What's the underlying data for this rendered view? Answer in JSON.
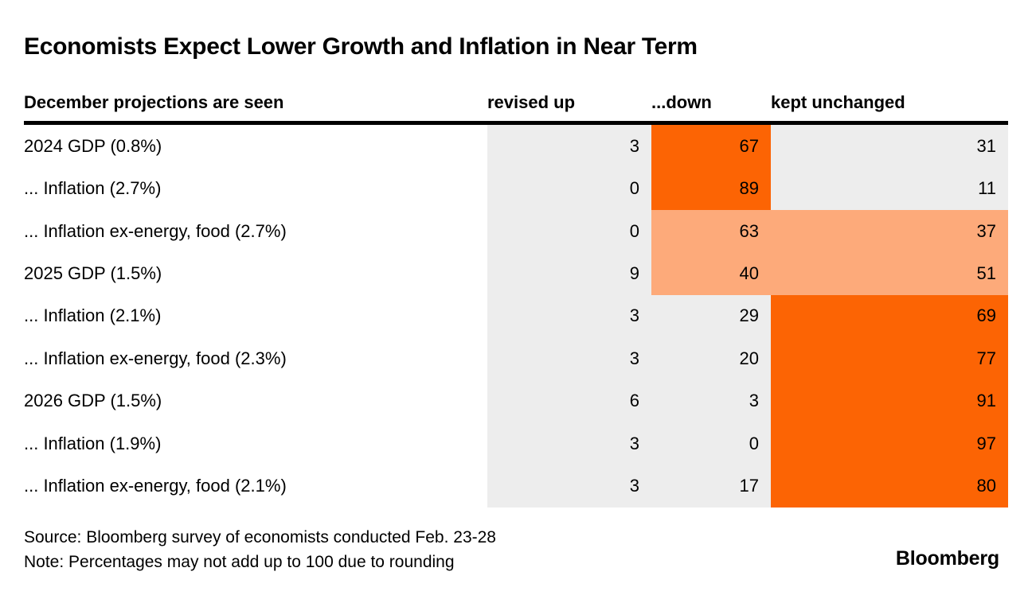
{
  "title": "Economists Expect Lower Growth and Inflation in Near Term",
  "colors": {
    "highlight_strong": "#FC6404",
    "highlight_soft": "#FDAA7A",
    "cell_gray": "#EDEDED",
    "text": "#000000"
  },
  "table": {
    "header": {
      "label": "December projections are seen",
      "columns": [
        "revised up",
        "...down",
        "kept unchanged"
      ]
    },
    "rows": [
      {
        "label": "2024 GDP (0.8%)",
        "up": "3",
        "down": "67",
        "kept": "31",
        "tones": [
          "gray",
          "hot",
          "gray"
        ]
      },
      {
        "label": "... Inflation (2.7%)",
        "up": "0",
        "down": "89",
        "kept": "11",
        "tones": [
          "gray",
          "hot",
          "gray"
        ]
      },
      {
        "label": "... Inflation ex-energy, food (2.7%)",
        "up": "0",
        "down": "63",
        "kept": "37",
        "tones": [
          "gray",
          "warm",
          "warm"
        ]
      },
      {
        "label": "2025 GDP (1.5%)",
        "up": "9",
        "down": "40",
        "kept": "51",
        "tones": [
          "gray",
          "warm",
          "warm"
        ]
      },
      {
        "label": "... Inflation (2.1%)",
        "up": "3",
        "down": "29",
        "kept": "69",
        "tones": [
          "gray",
          "gray",
          "hot"
        ]
      },
      {
        "label": "... Inflation ex-energy, food (2.3%)",
        "up": "3",
        "down": "20",
        "kept": "77",
        "tones": [
          "gray",
          "gray",
          "hot"
        ]
      },
      {
        "label": "2026 GDP (1.5%)",
        "up": "6",
        "down": "3",
        "kept": "91",
        "tones": [
          "gray",
          "gray",
          "hot"
        ]
      },
      {
        "label": "... Inflation (1.9%)",
        "up": "3",
        "down": "0",
        "kept": "97",
        "tones": [
          "gray",
          "gray",
          "hot"
        ]
      },
      {
        "label": "... Inflation ex-energy, food (2.1%)",
        "up": "3",
        "down": "17",
        "kept": "80",
        "tones": [
          "gray",
          "gray",
          "hot"
        ]
      }
    ]
  },
  "footer": {
    "source": "Source: Bloomberg survey of economists conducted Feb. 23-28",
    "note": "Note: Percentages may not add up to 100 due to rounding",
    "brand": "Bloomberg"
  },
  "chart_data": {
    "type": "table",
    "title": "Economists Expect Lower Growth and Inflation in Near Term",
    "subtitle": "December projections are seen",
    "categories": [
      "2024 GDP (0.8%)",
      "... Inflation (2.7%)",
      "... Inflation ex-energy, food (2.7%)",
      "2025 GDP (1.5%)",
      "... Inflation (2.1%)",
      "... Inflation ex-energy, food (2.3%)",
      "2026 GDP (1.5%)",
      "... Inflation (1.9%)",
      "... Inflation ex-energy, food (2.1%)"
    ],
    "series": [
      {
        "name": "revised up",
        "values": [
          3,
          0,
          0,
          9,
          3,
          3,
          6,
          3,
          3
        ]
      },
      {
        "name": "...down",
        "values": [
          67,
          89,
          63,
          40,
          29,
          20,
          3,
          0,
          17
        ]
      },
      {
        "name": "kept unchanged",
        "values": [
          31,
          11,
          37,
          51,
          69,
          77,
          91,
          97,
          80
        ]
      }
    ],
    "highlights": {
      "strong_orange_cells": "down column rows 1-2; kept-unchanged column rows 5-9",
      "soft_orange_cells": "down and kept-unchanged columns rows 3-4",
      "other_cells": "light gray"
    },
    "units": "percent of surveyed economists",
    "source": "Bloomberg survey of economists conducted Feb. 23-28",
    "note": "Percentages may not add up to 100 due to rounding"
  }
}
